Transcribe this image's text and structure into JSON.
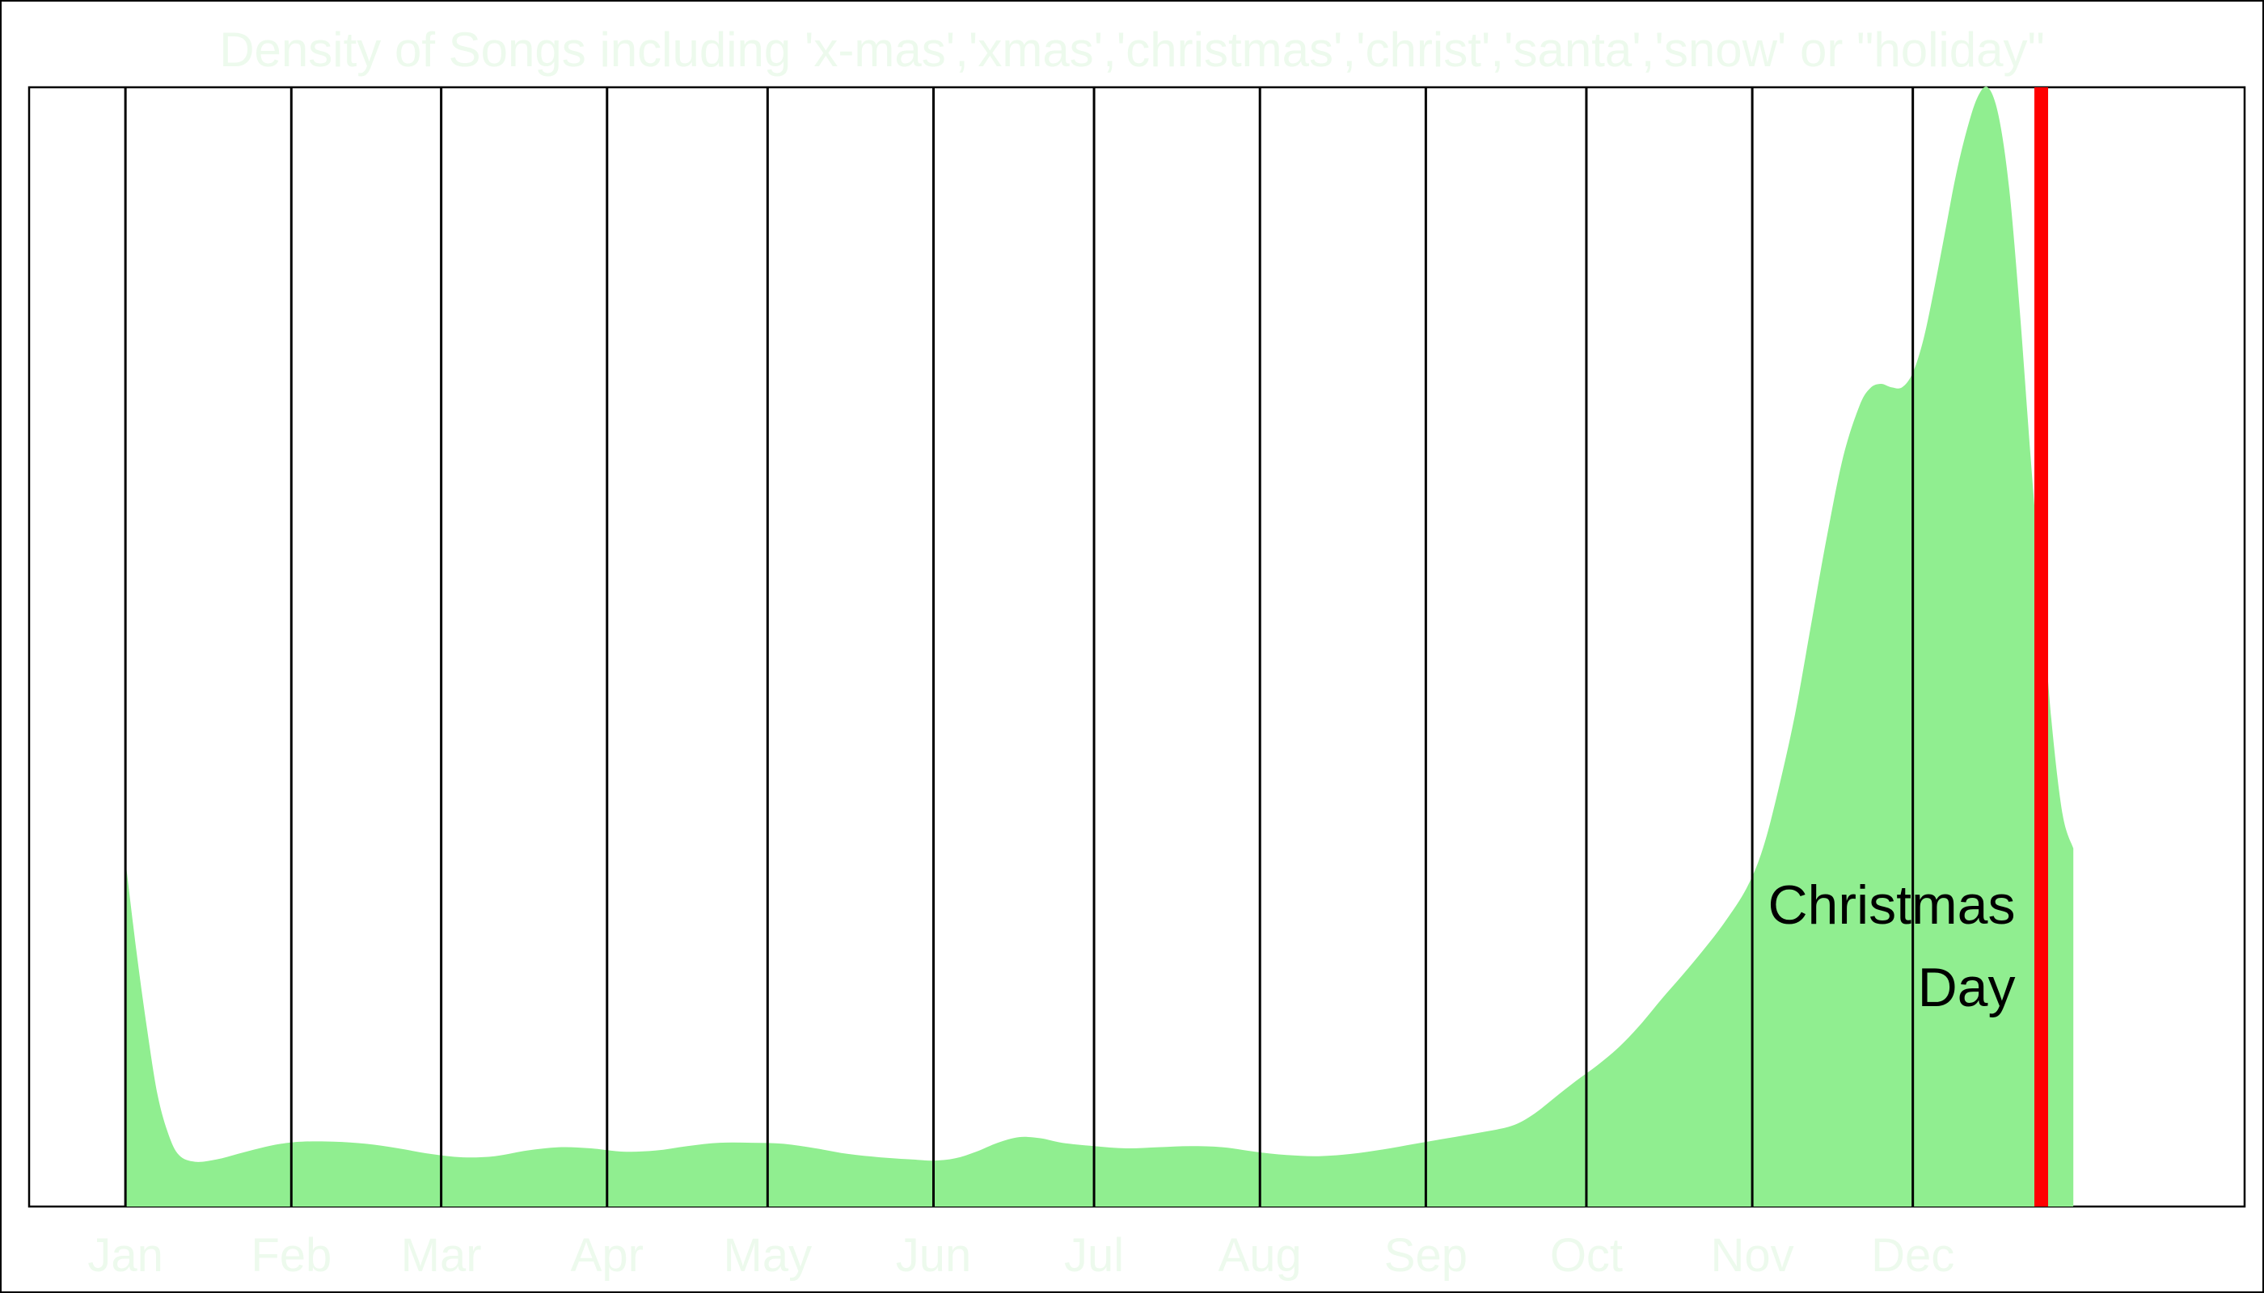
{
  "chart_data": {
    "type": "area",
    "title": "Density of Songs including 'x-mas','xmas','christmas','christ','santa','snow' or \"holiday\"",
    "xlabel": "",
    "ylabel": "",
    "x_ticks": [
      "Jan",
      "Feb",
      "Mar",
      "Apr",
      "May",
      "Jun",
      "Jul",
      "Aug",
      "Sep",
      "Oct",
      "Nov",
      "Dec"
    ],
    "x_tick_days": [
      1,
      32,
      60,
      91,
      121,
      152,
      182,
      213,
      244,
      274,
      305,
      335
    ],
    "xlim": [
      -17,
      397
    ],
    "ylim": [
      0,
      1
    ],
    "grid": "vertical lines at month starts",
    "legend": "none",
    "series": [
      {
        "fill": "#90ee90",
        "points": [
          [
            1,
            0.31
          ],
          [
            3,
            0.23
          ],
          [
            5,
            0.16
          ],
          [
            7,
            0.1
          ],
          [
            9,
            0.065
          ],
          [
            11,
            0.046
          ],
          [
            14,
            0.04
          ],
          [
            18,
            0.042
          ],
          [
            22,
            0.047
          ],
          [
            26,
            0.052
          ],
          [
            30,
            0.056
          ],
          [
            34,
            0.058
          ],
          [
            40,
            0.058
          ],
          [
            46,
            0.056
          ],
          [
            52,
            0.052
          ],
          [
            58,
            0.047
          ],
          [
            64,
            0.044
          ],
          [
            70,
            0.045
          ],
          [
            76,
            0.05
          ],
          [
            82,
            0.053
          ],
          [
            88,
            0.052
          ],
          [
            94,
            0.049
          ],
          [
            100,
            0.05
          ],
          [
            106,
            0.054
          ],
          [
            112,
            0.057
          ],
          [
            118,
            0.057
          ],
          [
            124,
            0.056
          ],
          [
            130,
            0.052
          ],
          [
            136,
            0.047
          ],
          [
            142,
            0.044
          ],
          [
            148,
            0.042
          ],
          [
            152,
            0.041
          ],
          [
            156,
            0.043
          ],
          [
            160,
            0.049
          ],
          [
            164,
            0.057
          ],
          [
            168,
            0.062
          ],
          [
            172,
            0.061
          ],
          [
            176,
            0.057
          ],
          [
            182,
            0.054
          ],
          [
            188,
            0.052
          ],
          [
            194,
            0.053
          ],
          [
            200,
            0.054
          ],
          [
            206,
            0.053
          ],
          [
            212,
            0.049
          ],
          [
            218,
            0.046
          ],
          [
            224,
            0.045
          ],
          [
            230,
            0.047
          ],
          [
            236,
            0.051
          ],
          [
            242,
            0.056
          ],
          [
            248,
            0.061
          ],
          [
            254,
            0.066
          ],
          [
            260,
            0.072
          ],
          [
            264,
            0.082
          ],
          [
            268,
            0.097
          ],
          [
            272,
            0.112
          ],
          [
            276,
            0.126
          ],
          [
            280,
            0.142
          ],
          [
            284,
            0.162
          ],
          [
            288,
            0.185
          ],
          [
            292,
            0.207
          ],
          [
            296,
            0.23
          ],
          [
            300,
            0.255
          ],
          [
            304,
            0.285
          ],
          [
            307,
            0.32
          ],
          [
            310,
            0.375
          ],
          [
            313,
            0.44
          ],
          [
            316,
            0.52
          ],
          [
            319,
            0.6
          ],
          [
            322,
            0.67
          ],
          [
            325,
            0.715
          ],
          [
            327,
            0.731
          ],
          [
            329,
            0.735
          ],
          [
            331,
            0.732
          ],
          [
            333,
            0.732
          ],
          [
            335,
            0.745
          ],
          [
            337,
            0.775
          ],
          [
            339,
            0.82
          ],
          [
            341,
            0.87
          ],
          [
            343,
            0.92
          ],
          [
            345,
            0.96
          ],
          [
            347,
            0.99
          ],
          [
            349,
            1.0
          ],
          [
            351,
            0.975
          ],
          [
            353,
            0.91
          ],
          [
            355,
            0.8
          ],
          [
            357,
            0.67
          ],
          [
            359,
            0.55
          ],
          [
            361,
            0.43
          ],
          [
            363,
            0.35
          ],
          [
            365,
            0.32
          ]
        ]
      }
    ],
    "annotations": [
      {
        "label": "Christmas Day",
        "day": 359,
        "color": "#ff0000",
        "text_color": "#000000"
      }
    ]
  },
  "colors": {
    "area": "#90ee90",
    "title_and_ticks": "#edfaed",
    "grid": "#000000",
    "marker": "#ff0000"
  }
}
